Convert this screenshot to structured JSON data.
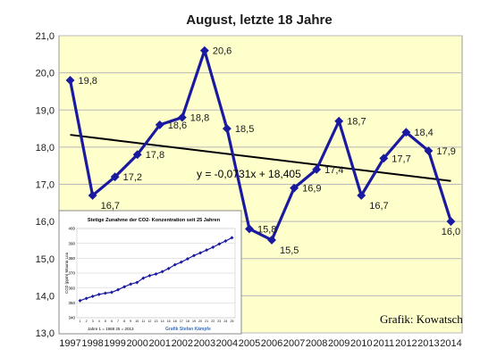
{
  "chart_data": [
    {
      "type": "line",
      "title": "August, letzte 18 Jahre",
      "xlabel": "",
      "ylabel": "",
      "ylim": [
        13.0,
        21.0
      ],
      "yticks": [
        "13,0",
        "14,0",
        "15,0",
        "16,0",
        "17,0",
        "18,0",
        "19,0",
        "20,0",
        "21,0"
      ],
      "grid": true,
      "categories": [
        "1997",
        "1998",
        "1999",
        "2000",
        "2001",
        "2002",
        "2003",
        "2004",
        "2005",
        "2006",
        "2007",
        "2008",
        "2009",
        "2010",
        "2011",
        "2012",
        "2013",
        "2014"
      ],
      "series": [
        {
          "values": [
            19.8,
            16.7,
            17.2,
            17.8,
            18.6,
            18.8,
            20.6,
            18.5,
            15.8,
            15.5,
            16.9,
            17.4,
            18.7,
            16.7,
            17.7,
            18.4,
            17.9,
            16.0
          ],
          "labels": [
            "19,8",
            "16,7",
            "17,2",
            "17,8",
            "18,6",
            "18,8",
            "20,6",
            "18,5",
            "15,8",
            "15,5",
            "16,9",
            "17,4",
            "18,7",
            "16,7",
            "17,7",
            "18,4",
            "17,9",
            "16,0"
          ],
          "color": "#1a1aa0"
        }
      ],
      "trendline": {
        "slope": -0.0731,
        "intercept": 18.405,
        "equation": "y = -0,0731x + 18,405",
        "color": "#000000"
      },
      "credit": "Grafik: Kowatsch",
      "plot_background": "#ffffcc"
    },
    {
      "type": "line",
      "title": "Stetige Zunahme der CO2- Konzentration seit 25 Jahren",
      "ylabel": "CO2 (ppm) Mauna Loa",
      "xlabel": "Jahre 1 = 1988  25 = 2013",
      "credit": "Grafik Stefan Kämpfe",
      "ylim": [
        340,
        400
      ],
      "yticks": [
        "340",
        "350",
        "360",
        "370",
        "380",
        "390",
        "400"
      ],
      "categories": [
        "1",
        "2",
        "3",
        "4",
        "5",
        "6",
        "7",
        "8",
        "9",
        "10",
        "11",
        "12",
        "13",
        "14",
        "15",
        "16",
        "17",
        "18",
        "19",
        "20",
        "21",
        "22",
        "23",
        "24",
        "25"
      ],
      "series": [
        {
          "values": [
            351.5,
            353.0,
            354.4,
            355.7,
            356.5,
            357.1,
            358.8,
            360.8,
            362.6,
            363.7,
            366.6,
            368.3,
            369.4,
            371.0,
            373.1,
            375.6,
            377.4,
            379.6,
            381.8,
            383.6,
            385.5,
            387.4,
            389.6,
            391.6,
            393.8
          ],
          "color": "#1a1aa0"
        }
      ]
    }
  ]
}
